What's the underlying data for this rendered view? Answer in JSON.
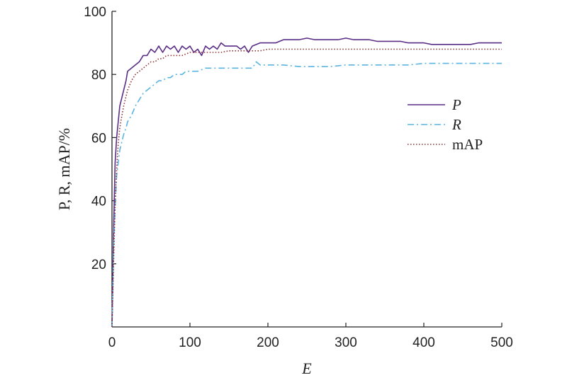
{
  "chart_data": {
    "type": "line",
    "xlabel": "E",
    "ylabel": "P, R, mAP/%",
    "xlim": [
      0,
      500
    ],
    "ylim": [
      0,
      100
    ],
    "x_ticks": [
      "0",
      "100",
      "200",
      "300",
      "400",
      "500"
    ],
    "y_ticks": [
      "20",
      "40",
      "60",
      "80",
      "100"
    ],
    "grid": false,
    "legend_position": "right",
    "series": [
      {
        "name": "P",
        "color": "#5a2d86",
        "style": "solid",
        "x": [
          0,
          2,
          4,
          6,
          8,
          10,
          12,
          15,
          18,
          20,
          25,
          30,
          35,
          40,
          45,
          50,
          55,
          60,
          65,
          70,
          75,
          80,
          85,
          90,
          95,
          100,
          105,
          110,
          115,
          120,
          125,
          130,
          135,
          140,
          145,
          150,
          155,
          160,
          165,
          170,
          175,
          180,
          190,
          200,
          210,
          220,
          230,
          240,
          250,
          260,
          270,
          280,
          290,
          300,
          310,
          320,
          330,
          340,
          350,
          360,
          370,
          380,
          390,
          400,
          410,
          420,
          430,
          440,
          450,
          460,
          470,
          480,
          490,
          500
        ],
        "y": [
          0,
          30,
          52,
          60,
          65,
          70,
          72,
          75,
          78,
          81,
          82,
          83,
          84,
          86,
          86,
          88,
          87,
          89,
          87,
          89,
          88,
          89,
          87,
          89,
          88,
          89,
          87,
          88,
          86,
          89,
          88,
          89,
          88,
          90,
          89,
          89,
          89,
          89,
          88,
          89,
          87,
          89,
          90,
          90,
          90,
          91,
          91,
          91,
          91.5,
          91,
          91,
          91,
          91,
          91.5,
          91,
          91,
          91,
          90.5,
          90.5,
          90.5,
          90.5,
          90,
          90,
          90,
          89.5,
          89.5,
          89.5,
          89.5,
          89.5,
          89.5,
          90,
          90,
          90,
          90
        ]
      },
      {
        "name": "R",
        "color": "#5ab4e0",
        "style": "dashdot",
        "x": [
          0,
          2,
          4,
          6,
          8,
          10,
          12,
          15,
          18,
          20,
          25,
          30,
          35,
          40,
          45,
          50,
          55,
          60,
          65,
          70,
          75,
          80,
          85,
          90,
          95,
          100,
          110,
          120,
          130,
          140,
          150,
          160,
          170,
          180,
          185,
          190,
          200,
          220,
          240,
          260,
          280,
          300,
          320,
          340,
          360,
          380,
          400,
          420,
          440,
          460,
          480,
          500
        ],
        "y": [
          0,
          25,
          38,
          48,
          52,
          56,
          58,
          61,
          63,
          65,
          67,
          70,
          72,
          74,
          75,
          76,
          77,
          78,
          78,
          79,
          79,
          80,
          80,
          80,
          81,
          81,
          81,
          82,
          82,
          82,
          82,
          82,
          82,
          82,
          84,
          83,
          83,
          83,
          82.5,
          82.5,
          82.5,
          83,
          83,
          83,
          83,
          83,
          83.5,
          83.5,
          83.5,
          83.5,
          83.5,
          83.5
        ]
      },
      {
        "name": "mAP",
        "color": "#8b2e2e",
        "style": "dotted",
        "x": [
          0,
          2,
          4,
          6,
          8,
          10,
          12,
          15,
          18,
          20,
          25,
          30,
          35,
          40,
          45,
          50,
          55,
          60,
          65,
          70,
          75,
          80,
          90,
          100,
          110,
          120,
          130,
          140,
          150,
          160,
          170,
          180,
          190,
          200,
          220,
          240,
          260,
          280,
          300,
          320,
          340,
          360,
          380,
          400,
          420,
          440,
          460,
          480,
          500
        ],
        "y": [
          0,
          20,
          38,
          50,
          58,
          63,
          66,
          70,
          73,
          75,
          78,
          80,
          81,
          82,
          83,
          84,
          84,
          85,
          85,
          86,
          86,
          86,
          86,
          87,
          87,
          87,
          87,
          87,
          87.5,
          87.5,
          87.5,
          87.5,
          87.5,
          88,
          88,
          88,
          88,
          88,
          88,
          88,
          88,
          88,
          88,
          88,
          88,
          88,
          88,
          88,
          88
        ]
      }
    ]
  }
}
